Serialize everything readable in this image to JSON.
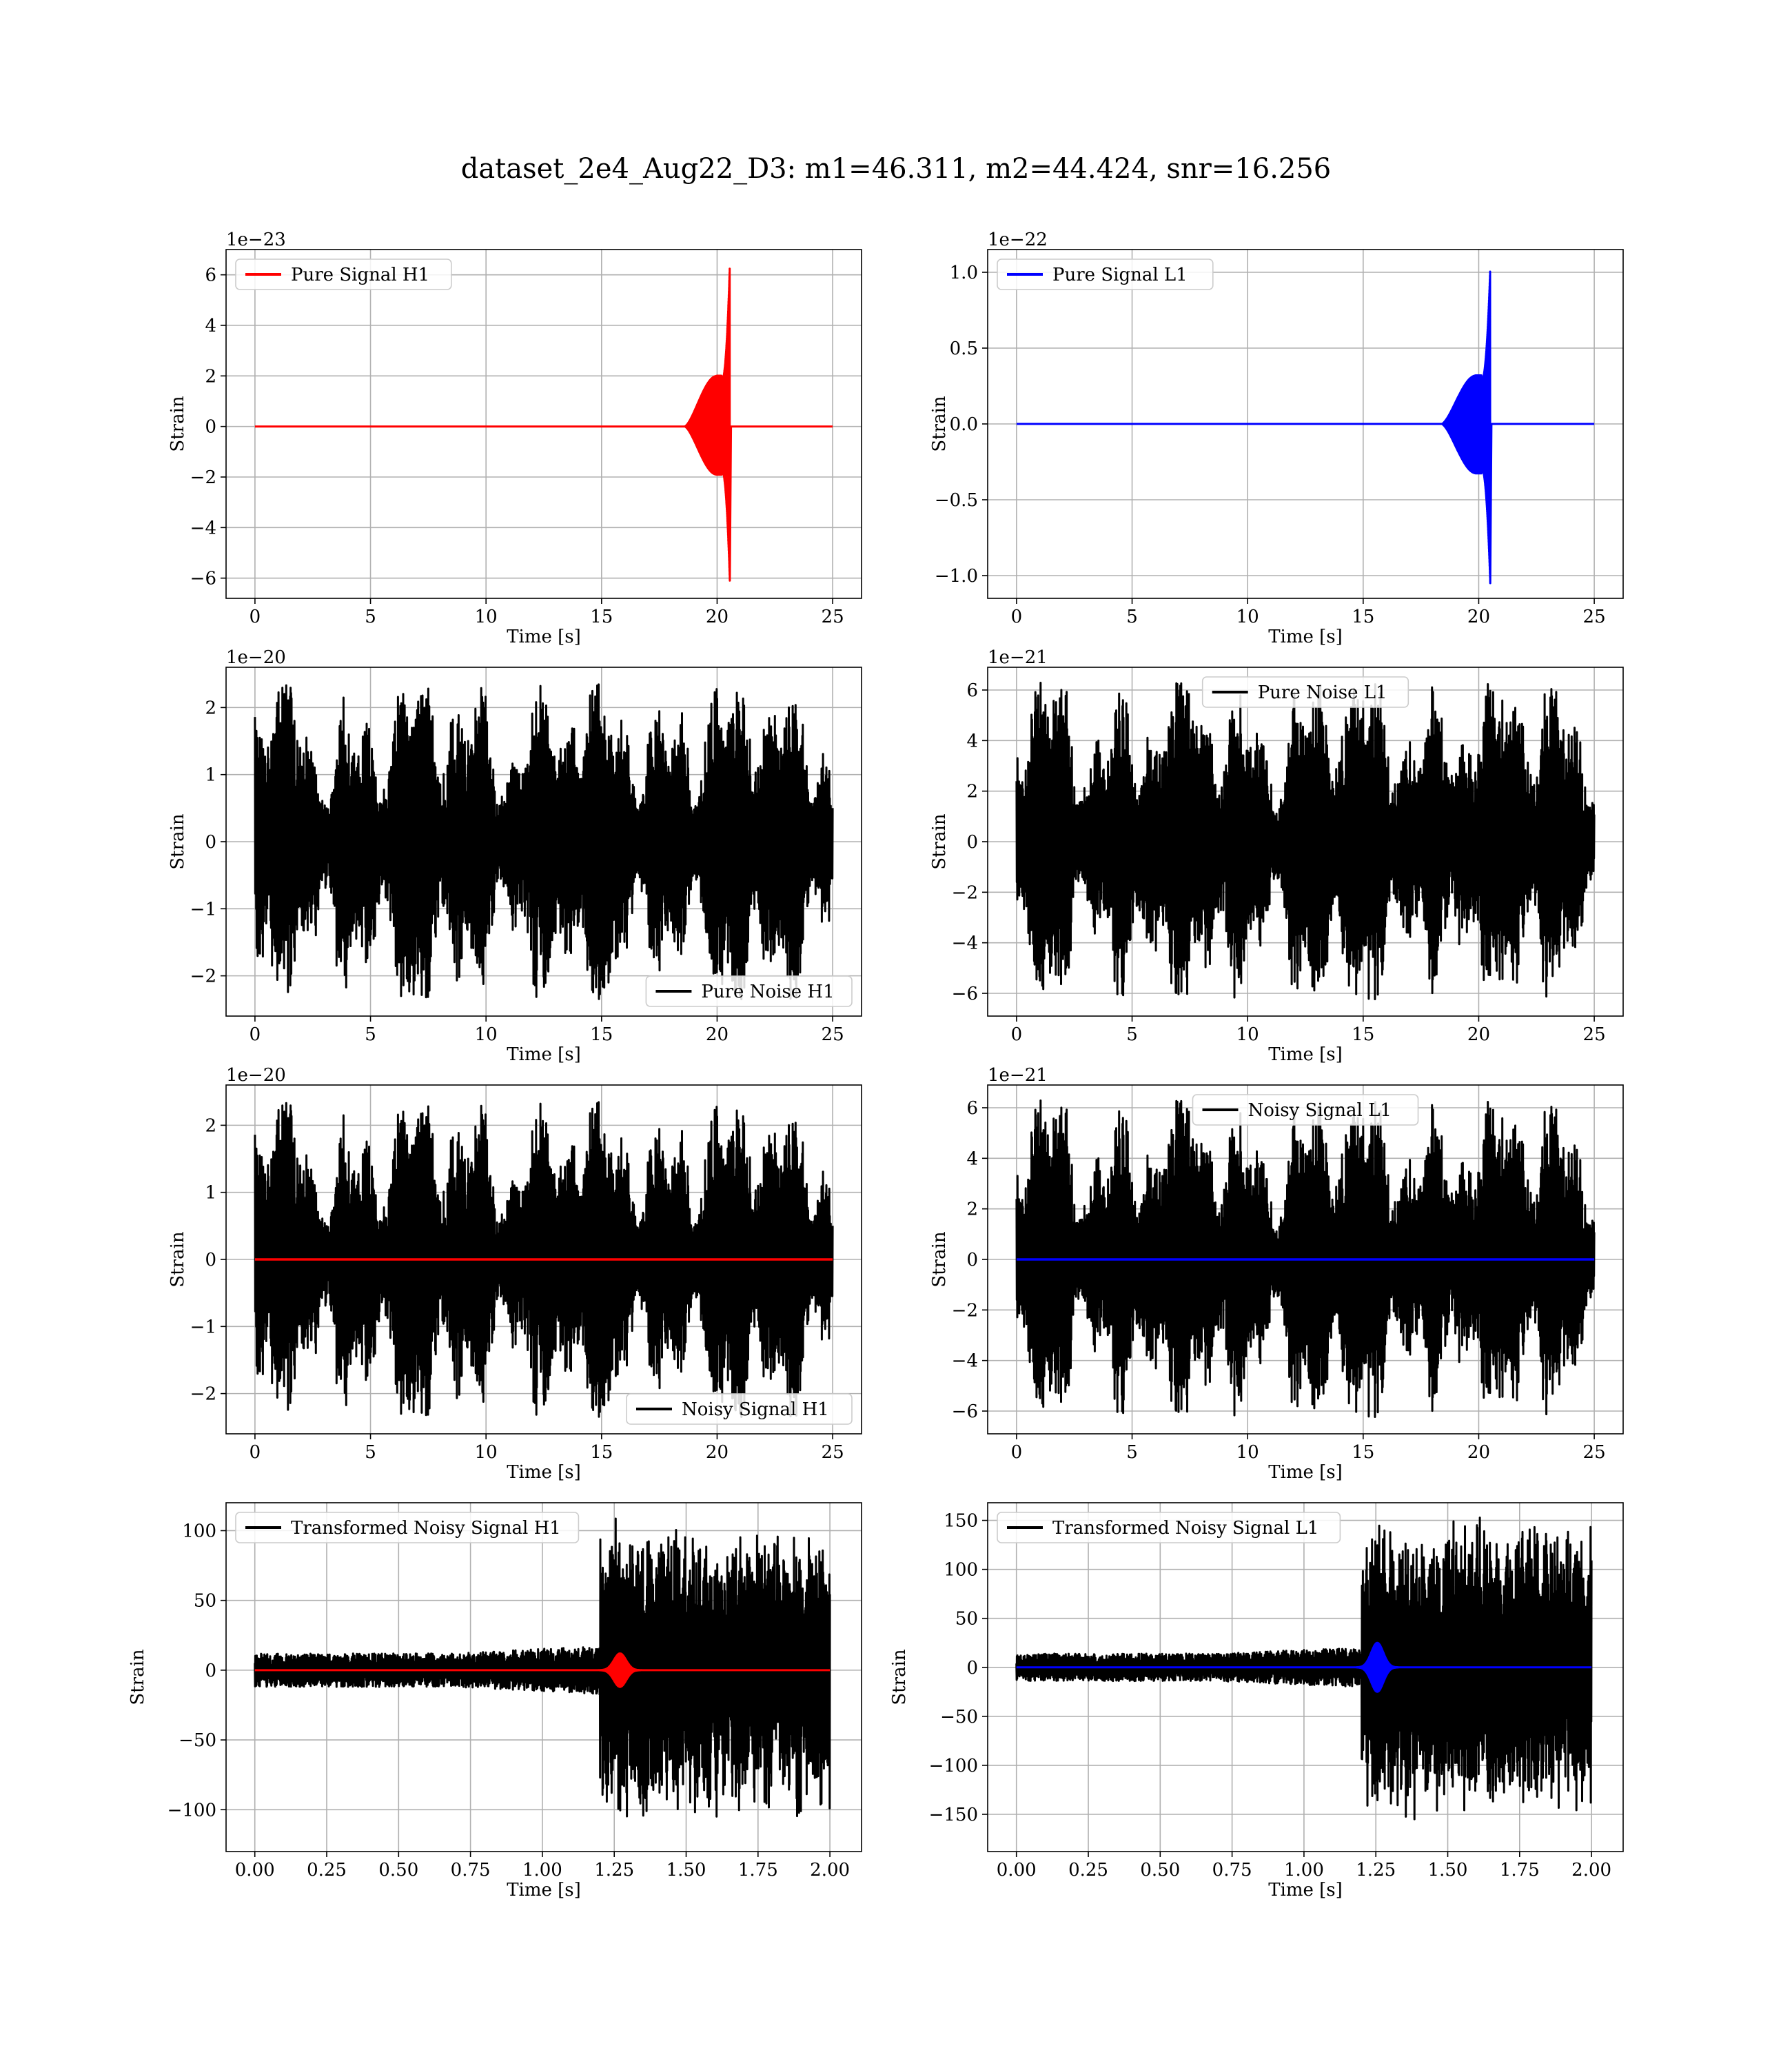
{
  "figure": {
    "title": "dataset_2e4_Aug22_D3: m1=46.311, m2=44.424, snr=16.256"
  },
  "colors": {
    "h1": "#ff0000",
    "l1": "#0000ff",
    "noise": "#000000",
    "grid": "#b0b0b0"
  },
  "chart_data": [
    {
      "id": "pure-signal-h1",
      "type": "line",
      "legend_loc": "upper-left",
      "offset_text": "1e−23",
      "xlabel": "Time [s]",
      "ylabel": "Strain",
      "xlim": [
        -1.25,
        26.25
      ],
      "ylim": [
        -6.8,
        7.0
      ],
      "xticks": [
        0,
        5,
        10,
        15,
        20,
        25
      ],
      "xtick_labels": [
        "0",
        "5",
        "10",
        "15",
        "20",
        "25"
      ],
      "yticks": [
        -6,
        -4,
        -2,
        0,
        2,
        4,
        6
      ],
      "ytick_labels": [
        "−6",
        "−4",
        "−2",
        "0",
        "2",
        "4",
        "6"
      ],
      "grid": true,
      "series": [
        {
          "name": "Pure Signal H1",
          "color": "#ff0000",
          "kind": "chirp",
          "in_legend": true,
          "x_range": [
            0,
            25
          ],
          "onset": 18.6,
          "merger": 20.55,
          "inspiral_peak": 2.0,
          "peak": 6.4,
          "ringdown_min": -6.1
        }
      ]
    },
    {
      "id": "pure-signal-l1",
      "type": "line",
      "legend_loc": "upper-left",
      "offset_text": "1e−22",
      "xlabel": "Time [s]",
      "ylabel": "Strain",
      "xlim": [
        -1.25,
        26.25
      ],
      "ylim": [
        -1.15,
        1.15
      ],
      "xticks": [
        0,
        5,
        10,
        15,
        20,
        25
      ],
      "xtick_labels": [
        "0",
        "5",
        "10",
        "15",
        "20",
        "25"
      ],
      "yticks": [
        -1.0,
        -0.5,
        0.0,
        0.5,
        1.0
      ],
      "ytick_labels": [
        "−1.0",
        "−0.5",
        "0.0",
        "0.5",
        "1.0"
      ],
      "grid": true,
      "series": [
        {
          "name": "Pure Signal L1",
          "color": "#0000ff",
          "kind": "chirp",
          "in_legend": true,
          "x_range": [
            0,
            25
          ],
          "onset": 18.4,
          "merger": 20.5,
          "inspiral_peak": 0.32,
          "peak": 1.03,
          "ringdown_min": -1.05
        }
      ]
    },
    {
      "id": "pure-noise-h1",
      "type": "line",
      "legend_loc": "lower-right",
      "offset_text": "1e−20",
      "xlabel": "Time [s]",
      "ylabel": "Strain",
      "xlim": [
        -1.25,
        26.25
      ],
      "ylim": [
        -2.6,
        2.6
      ],
      "xticks": [
        0,
        5,
        10,
        15,
        20,
        25
      ],
      "xtick_labels": [
        "0",
        "5",
        "10",
        "15",
        "20",
        "25"
      ],
      "yticks": [
        -2,
        -1,
        0,
        1,
        2
      ],
      "ytick_labels": [
        "−2",
        "−1",
        "0",
        "1",
        "2"
      ],
      "grid": true,
      "series": [
        {
          "name": "Pure Noise H1",
          "color": "#000000",
          "kind": "noise",
          "in_legend": true,
          "x_range": [
            0,
            25
          ],
          "max_amplitude": 2.35,
          "seed": 11
        }
      ]
    },
    {
      "id": "pure-noise-l1",
      "type": "line",
      "legend_loc": "upper-center",
      "offset_text": "1e−21",
      "xlabel": "Time [s]",
      "ylabel": "Strain",
      "xlim": [
        -1.25,
        26.25
      ],
      "ylim": [
        -6.9,
        6.9
      ],
      "xticks": [
        0,
        5,
        10,
        15,
        20,
        25
      ],
      "xtick_labels": [
        "0",
        "5",
        "10",
        "15",
        "20",
        "25"
      ],
      "yticks": [
        -6,
        -4,
        -2,
        0,
        2,
        4,
        6
      ],
      "ytick_labels": [
        "−6",
        "−4",
        "−2",
        "0",
        "2",
        "4",
        "6"
      ],
      "grid": true,
      "series": [
        {
          "name": "Pure Noise L1",
          "color": "#000000",
          "kind": "noise",
          "in_legend": true,
          "x_range": [
            0,
            25
          ],
          "max_amplitude": 6.3,
          "seed": 23
        }
      ]
    },
    {
      "id": "noisy-signal-h1",
      "type": "line",
      "legend_loc": "lower-right",
      "offset_text": "1e−20",
      "xlabel": "Time [s]",
      "ylabel": "Strain",
      "xlim": [
        -1.25,
        26.25
      ],
      "ylim": [
        -2.6,
        2.6
      ],
      "xticks": [
        0,
        5,
        10,
        15,
        20,
        25
      ],
      "xtick_labels": [
        "0",
        "5",
        "10",
        "15",
        "20",
        "25"
      ],
      "yticks": [
        -2,
        -1,
        0,
        1,
        2
      ],
      "ytick_labels": [
        "−2",
        "−1",
        "0",
        "1",
        "2"
      ],
      "grid": true,
      "series": [
        {
          "name": "Noisy Signal H1",
          "color": "#000000",
          "kind": "noise",
          "in_legend": true,
          "x_range": [
            0,
            25
          ],
          "max_amplitude": 2.35,
          "seed": 11
        },
        {
          "name": "",
          "color": "#ff0000",
          "kind": "flat",
          "in_legend": false,
          "x_range": [
            0,
            25
          ],
          "value": 0
        }
      ]
    },
    {
      "id": "noisy-signal-l1",
      "type": "line",
      "legend_loc": "upper-center",
      "offset_text": "1e−21",
      "xlabel": "Time [s]",
      "ylabel": "Strain",
      "xlim": [
        -1.25,
        26.25
      ],
      "ylim": [
        -6.9,
        6.9
      ],
      "xticks": [
        0,
        5,
        10,
        15,
        20,
        25
      ],
      "xtick_labels": [
        "0",
        "5",
        "10",
        "15",
        "20",
        "25"
      ],
      "yticks": [
        -6,
        -4,
        -2,
        0,
        2,
        4,
        6
      ],
      "ytick_labels": [
        "−6",
        "−4",
        "−2",
        "0",
        "2",
        "4",
        "6"
      ],
      "grid": true,
      "series": [
        {
          "name": "Noisy Signal L1",
          "color": "#000000",
          "kind": "noise",
          "in_legend": true,
          "x_range": [
            0,
            25
          ],
          "max_amplitude": 6.3,
          "seed": 23
        },
        {
          "name": "",
          "color": "#0000ff",
          "kind": "flat",
          "in_legend": false,
          "x_range": [
            0,
            25
          ],
          "value": 0
        }
      ]
    },
    {
      "id": "transformed-noisy-signal-h1",
      "type": "line",
      "legend_loc": "upper-left",
      "offset_text": "",
      "xlabel": "Time [s]",
      "ylabel": "Strain",
      "xlim": [
        -0.1,
        2.11
      ],
      "ylim": [
        -130,
        120
      ],
      "xticks": [
        0,
        0.25,
        0.5,
        0.75,
        1.0,
        1.25,
        1.5,
        1.75,
        2.0
      ],
      "xtick_labels": [
        "0.00",
        "0.25",
        "0.50",
        "0.75",
        "1.00",
        "1.25",
        "1.50",
        "1.75",
        "2.00"
      ],
      "yticks": [
        -100,
        -50,
        0,
        50,
        100
      ],
      "ytick_labels": [
        "−100",
        "−50",
        "0",
        "50",
        "100"
      ],
      "grid": true,
      "series": [
        {
          "name": "Transformed Noisy Signal H1",
          "color": "#000000",
          "kind": "whitened",
          "in_legend": true,
          "x_range": [
            0,
            2.0
          ],
          "base_amplitude": 12,
          "jump_at": 1.2,
          "high_amplitude": 110,
          "seed": 5
        },
        {
          "name": "",
          "color": "#ff0000",
          "kind": "burst",
          "in_legend": false,
          "x_range": [
            0,
            2.0
          ],
          "center": 1.27,
          "width": 0.03,
          "peak": 12
        }
      ]
    },
    {
      "id": "transformed-noisy-signal-l1",
      "type": "line",
      "legend_loc": "upper-left",
      "offset_text": "",
      "xlabel": "Time [s]",
      "ylabel": "Strain",
      "xlim": [
        -0.1,
        2.11
      ],
      "ylim": [
        -188,
        168
      ],
      "xticks": [
        0,
        0.25,
        0.5,
        0.75,
        1.0,
        1.25,
        1.5,
        1.75,
        2.0
      ],
      "xtick_labels": [
        "0.00",
        "0.25",
        "0.50",
        "0.75",
        "1.00",
        "1.25",
        "1.50",
        "1.75",
        "2.00"
      ],
      "yticks": [
        -150,
        -100,
        -50,
        0,
        50,
        100,
        150
      ],
      "ytick_labels": [
        "−150",
        "−100",
        "−50",
        "0",
        "50",
        "100",
        "150"
      ],
      "grid": true,
      "series": [
        {
          "name": "Transformed Noisy Signal L1",
          "color": "#000000",
          "kind": "whitened",
          "in_legend": true,
          "x_range": [
            0,
            2.0
          ],
          "base_amplitude": 14,
          "jump_at": 1.2,
          "high_amplitude": 160,
          "seed": 9
        },
        {
          "name": "",
          "color": "#0000ff",
          "kind": "burst",
          "in_legend": false,
          "x_range": [
            0,
            2.0
          ],
          "center": 1.255,
          "width": 0.03,
          "peak": 25
        }
      ]
    }
  ]
}
